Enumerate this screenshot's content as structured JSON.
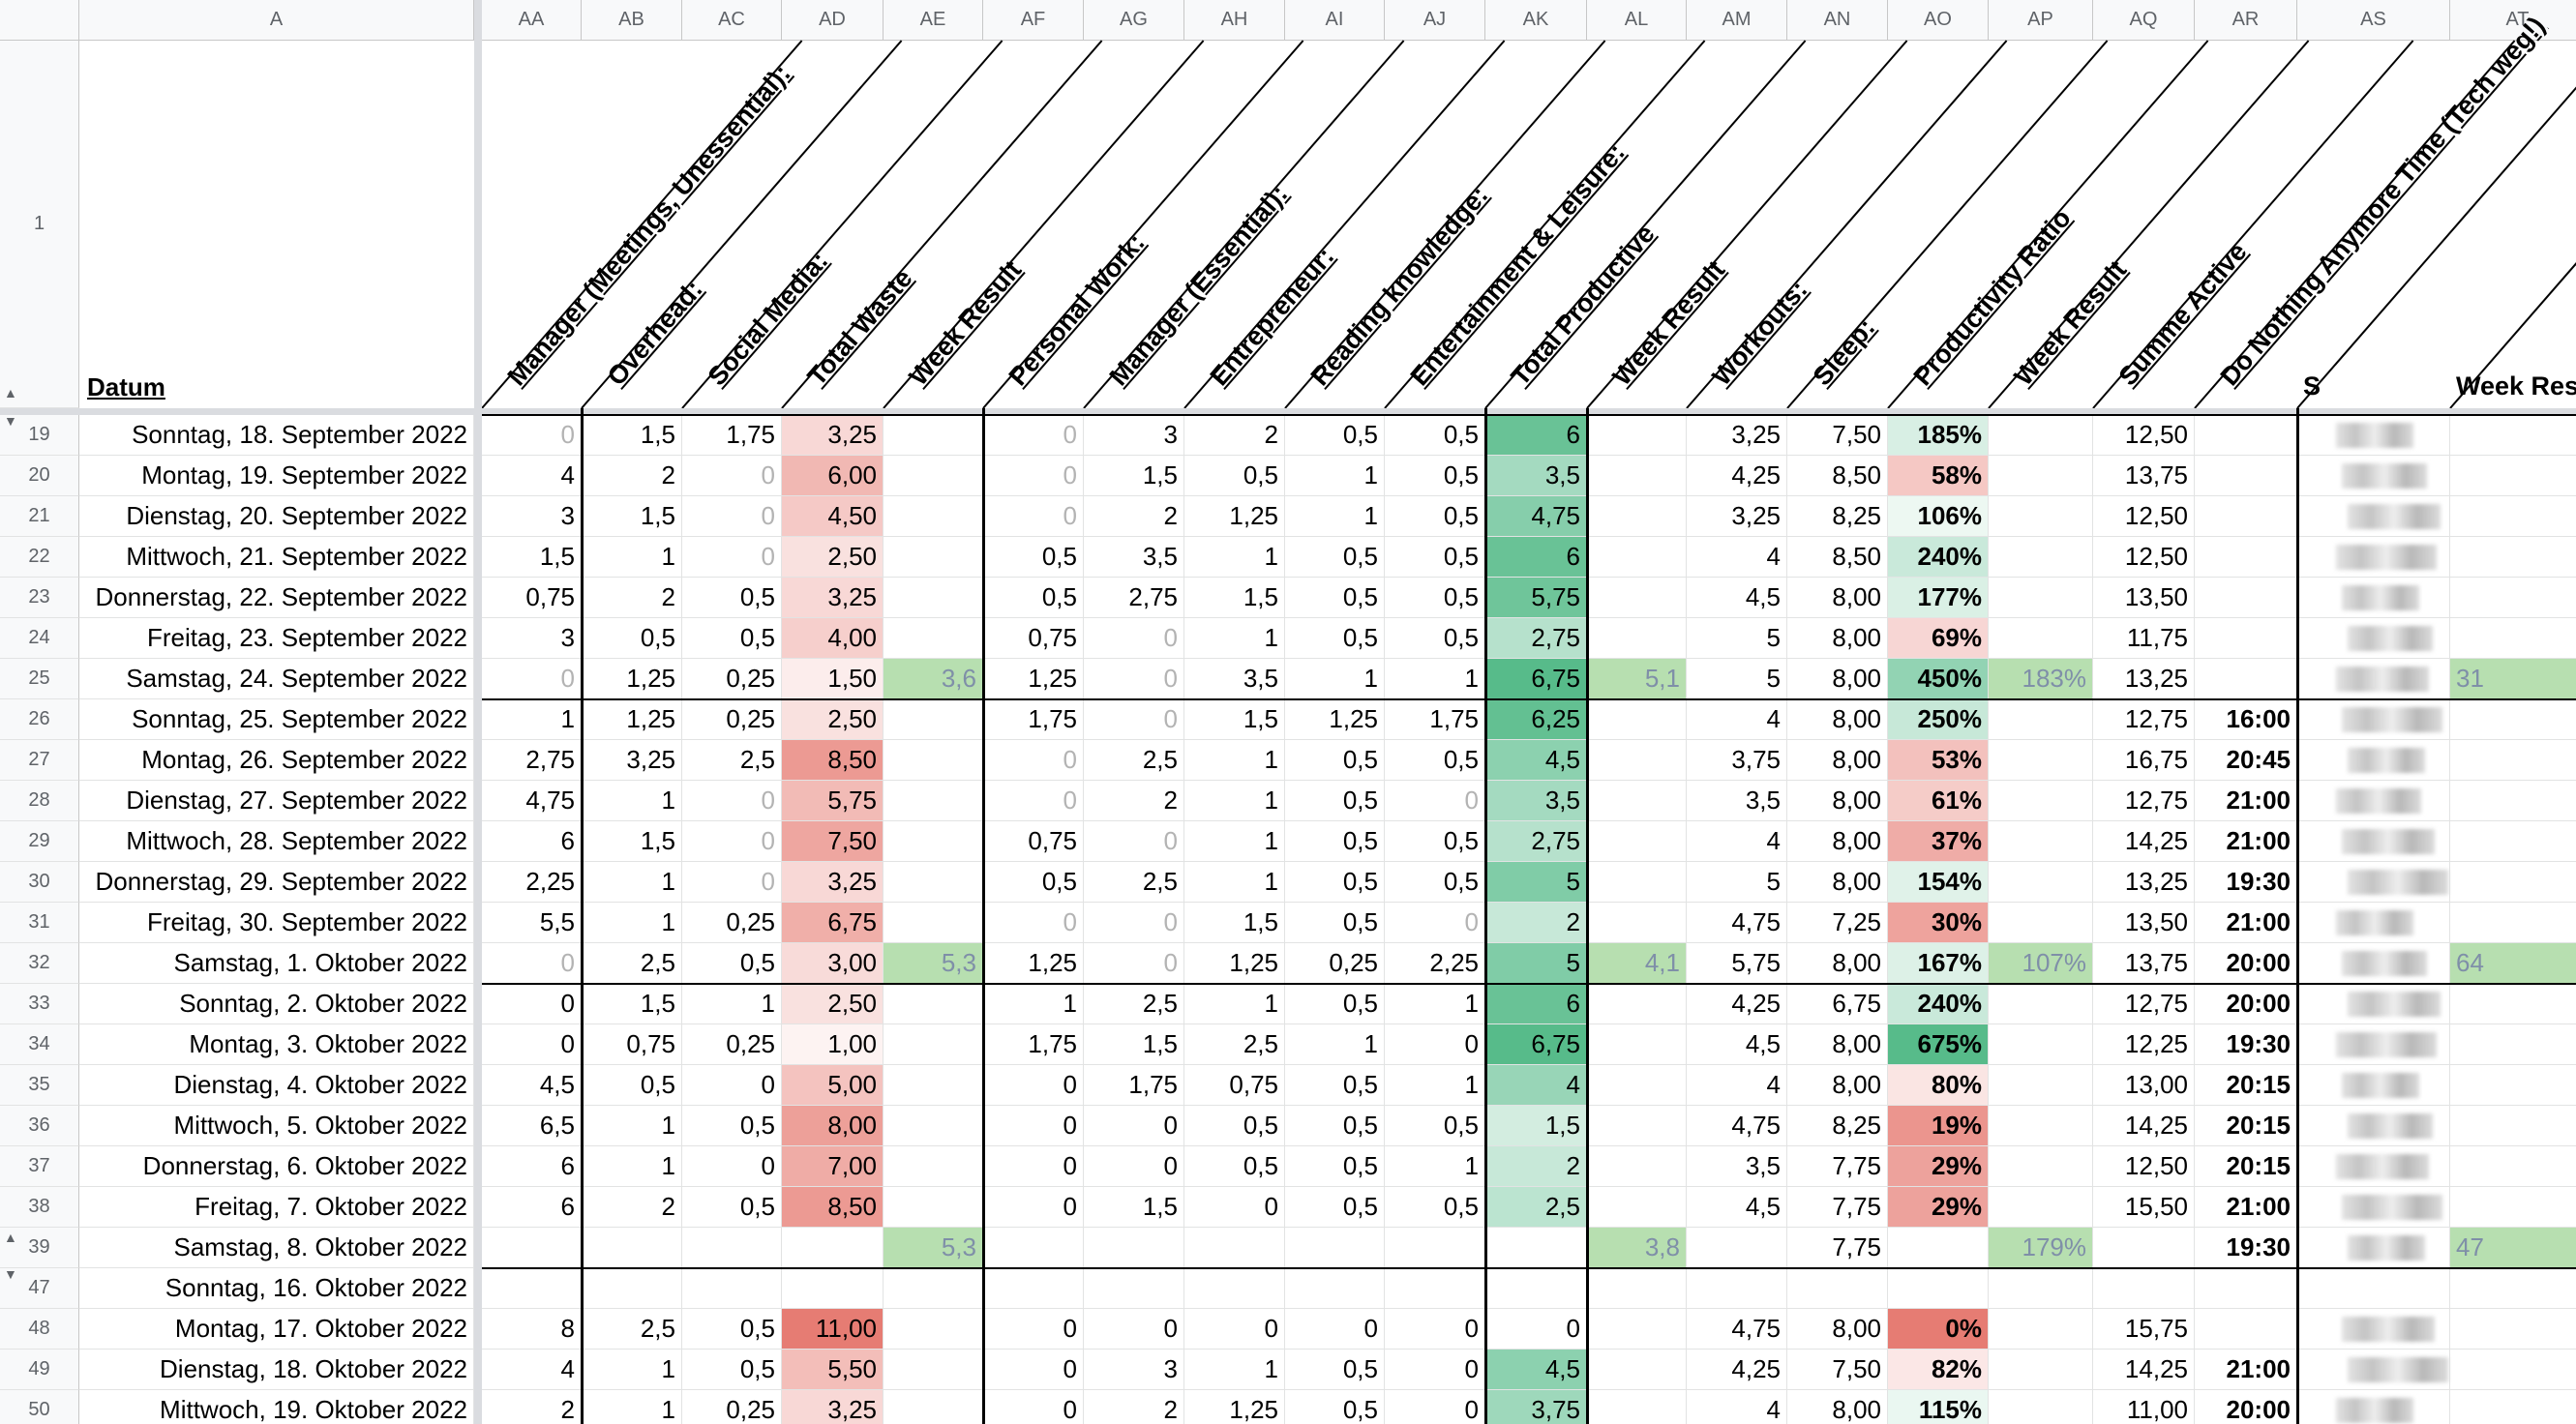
{
  "columns": [
    {
      "id": "A",
      "label": "A"
    },
    {
      "id": "AA",
      "label": "AA"
    },
    {
      "id": "AB",
      "label": "AB"
    },
    {
      "id": "AC",
      "label": "AC"
    },
    {
      "id": "AD",
      "label": "AD"
    },
    {
      "id": "AE",
      "label": "AE"
    },
    {
      "id": "AF",
      "label": "AF"
    },
    {
      "id": "AG",
      "label": "AG"
    },
    {
      "id": "AH",
      "label": "AH"
    },
    {
      "id": "AI",
      "label": "AI"
    },
    {
      "id": "AJ",
      "label": "AJ"
    },
    {
      "id": "AK",
      "label": "AK"
    },
    {
      "id": "AL",
      "label": "AL"
    },
    {
      "id": "AM",
      "label": "AM"
    },
    {
      "id": "AN",
      "label": "AN"
    },
    {
      "id": "AO",
      "label": "AO"
    },
    {
      "id": "AP",
      "label": "AP"
    },
    {
      "id": "AQ",
      "label": "AQ"
    },
    {
      "id": "AR",
      "label": "AR"
    },
    {
      "id": "AS",
      "label": "AS"
    },
    {
      "id": "AT",
      "label": "AT"
    }
  ],
  "header_row": {
    "row_label": "1",
    "datum": "Datum",
    "headers": [
      "Manager (Meetings, Unessential):",
      "Overhead:",
      "Social Media:",
      "Total Waste",
      "Week Result",
      "Personal Work:",
      "Manager (Essential):",
      "Entrepreneur:",
      "Reading knowledge:",
      "Entertainment & Leisure:",
      "Total Productive",
      "Week Result",
      "Workouts:",
      "Sleep:",
      "Productivity Ratio",
      "Week Result",
      "Summe Active",
      "Do Nothing Anymore Time (Tech weg!)",
      "S",
      "Week Res"
    ]
  },
  "rows": [
    {
      "n": "19",
      "date": "Sonntag, 18. September 2022",
      "v": [
        "0",
        "1,5",
        "1,75",
        "3,25",
        "",
        "0",
        "3",
        "2",
        "0,5",
        "0,5",
        "6",
        "",
        "3,25",
        "7,50",
        "185%",
        "",
        "12,50",
        "",
        "",
        ""
      ]
    },
    {
      "n": "20",
      "date": "Montag, 19. September 2022",
      "v": [
        "4",
        "2",
        "0",
        "6,00",
        "",
        "0",
        "1,5",
        "0,5",
        "1",
        "0,5",
        "3,5",
        "",
        "4,25",
        "8,50",
        "58%",
        "",
        "13,75",
        "",
        "",
        ""
      ]
    },
    {
      "n": "21",
      "date": "Dienstag, 20. September 2022",
      "v": [
        "3",
        "1,5",
        "0",
        "4,50",
        "",
        "0",
        "2",
        "1,25",
        "1",
        "0,5",
        "4,75",
        "",
        "3,25",
        "8,25",
        "106%",
        "",
        "12,50",
        "",
        "",
        ""
      ]
    },
    {
      "n": "22",
      "date": "Mittwoch, 21. September 2022",
      "v": [
        "1,5",
        "1",
        "0",
        "2,50",
        "",
        "0,5",
        "3,5",
        "1",
        "0,5",
        "0,5",
        "6",
        "",
        "4",
        "8,50",
        "240%",
        "",
        "12,50",
        "",
        "",
        ""
      ]
    },
    {
      "n": "23",
      "date": "Donnerstag, 22. September 2022",
      "v": [
        "0,75",
        "2",
        "0,5",
        "3,25",
        "",
        "0,5",
        "2,75",
        "1,5",
        "0,5",
        "0,5",
        "5,75",
        "",
        "4,5",
        "8,00",
        "177%",
        "",
        "13,50",
        "",
        "",
        ""
      ]
    },
    {
      "n": "24",
      "date": "Freitag, 23. September 2022",
      "v": [
        "3",
        "0,5",
        "0,5",
        "4,00",
        "",
        "0,75",
        "0",
        "1",
        "0,5",
        "0,5",
        "2,75",
        "",
        "5",
        "8,00",
        "69%",
        "",
        "11,75",
        "",
        "",
        ""
      ]
    },
    {
      "n": "25",
      "date": "Samstag, 24. September 2022",
      "v": [
        "0",
        "1,25",
        "0,25",
        "1,50",
        "3,6",
        "1,25",
        "0",
        "3,5",
        "1",
        "1",
        "6,75",
        "5,1",
        "5",
        "8,00",
        "450%",
        "183%",
        "13,25",
        "",
        "",
        "31"
      ]
    },
    {
      "n": "26",
      "date": "Sonntag, 25. September 2022",
      "v": [
        "1",
        "1,25",
        "0,25",
        "2,50",
        "",
        "1,75",
        "0",
        "1,5",
        "1,25",
        "1,75",
        "6,25",
        "",
        "4",
        "8,00",
        "250%",
        "",
        "12,75",
        "16:00",
        "",
        ""
      ]
    },
    {
      "n": "27",
      "date": "Montag, 26. September 2022",
      "v": [
        "2,75",
        "3,25",
        "2,5",
        "8,50",
        "",
        "0",
        "2,5",
        "1",
        "0,5",
        "0,5",
        "4,5",
        "",
        "3,75",
        "8,00",
        "53%",
        "",
        "16,75",
        "20:45",
        "",
        ""
      ]
    },
    {
      "n": "28",
      "date": "Dienstag, 27. September 2022",
      "v": [
        "4,75",
        "1",
        "0",
        "5,75",
        "",
        "0",
        "2",
        "1",
        "0,5",
        "0",
        "3,5",
        "",
        "3,5",
        "8,00",
        "61%",
        "",
        "12,75",
        "21:00",
        "",
        ""
      ]
    },
    {
      "n": "29",
      "date": "Mittwoch, 28. September 2022",
      "v": [
        "6",
        "1,5",
        "0",
        "7,50",
        "",
        "0,75",
        "0",
        "1",
        "0,5",
        "0,5",
        "2,75",
        "",
        "4",
        "8,00",
        "37%",
        "",
        "14,25",
        "21:00",
        "",
        ""
      ]
    },
    {
      "n": "30",
      "date": "Donnerstag, 29. September 2022",
      "v": [
        "2,25",
        "1",
        "0",
        "3,25",
        "",
        "0,5",
        "2,5",
        "1",
        "0,5",
        "0,5",
        "5",
        "",
        "5",
        "8,00",
        "154%",
        "",
        "13,25",
        "19:30",
        "",
        ""
      ]
    },
    {
      "n": "31",
      "date": "Freitag, 30. September 2022",
      "v": [
        "5,5",
        "1",
        "0,25",
        "6,75",
        "",
        "0",
        "0",
        "1,5",
        "0,5",
        "0",
        "2",
        "",
        "4,75",
        "7,25",
        "30%",
        "",
        "13,50",
        "21:00",
        "",
        ""
      ]
    },
    {
      "n": "32",
      "date": "Samstag, 1. Oktober 2022",
      "v": [
        "0",
        "2,5",
        "0,5",
        "3,00",
        "5,3",
        "1,25",
        "0",
        "1,25",
        "0,25",
        "2,25",
        "5",
        "4,1",
        "5,75",
        "8,00",
        "167%",
        "107%",
        "13,75",
        "20:00",
        "",
        "64"
      ]
    },
    {
      "n": "33",
      "date": "Sonntag, 2. Oktober 2022",
      "v": [
        "0",
        "1,5",
        "1",
        "2,50",
        "",
        "1",
        "2,5",
        "1",
        "0,5",
        "1",
        "6",
        "",
        "4,25",
        "6,75",
        "240%",
        "",
        "12,75",
        "20:00",
        "",
        ""
      ]
    },
    {
      "n": "34",
      "date": "Montag, 3. Oktober 2022",
      "v": [
        "0",
        "0,75",
        "0,25",
        "1,00",
        "",
        "1,75",
        "1,5",
        "2,5",
        "1",
        "0",
        "6,75",
        "",
        "4,5",
        "8,00",
        "675%",
        "",
        "12,25",
        "19:30",
        "",
        ""
      ]
    },
    {
      "n": "35",
      "date": "Dienstag, 4. Oktober 2022",
      "v": [
        "4,5",
        "0,5",
        "0",
        "5,00",
        "",
        "0",
        "1,75",
        "0,75",
        "0,5",
        "1",
        "4",
        "",
        "4",
        "8,00",
        "80%",
        "",
        "13,00",
        "20:15",
        "",
        ""
      ]
    },
    {
      "n": "36",
      "date": "Mittwoch, 5. Oktober 2022",
      "v": [
        "6,5",
        "1",
        "0,5",
        "8,00",
        "",
        "0",
        "0",
        "0,5",
        "0,5",
        "0,5",
        "1,5",
        "",
        "4,75",
        "8,25",
        "19%",
        "",
        "14,25",
        "20:15",
        "",
        ""
      ]
    },
    {
      "n": "37",
      "date": "Donnerstag, 6. Oktober 2022",
      "v": [
        "6",
        "1",
        "0",
        "7,00",
        "",
        "0",
        "0",
        "0,5",
        "0,5",
        "1",
        "2",
        "",
        "3,5",
        "7,75",
        "29%",
        "",
        "12,50",
        "20:15",
        "",
        ""
      ]
    },
    {
      "n": "38",
      "date": "Freitag, 7. Oktober 2022",
      "v": [
        "6",
        "2",
        "0,5",
        "8,50",
        "",
        "0",
        "1,5",
        "0",
        "0,5",
        "0,5",
        "2,5",
        "",
        "4,5",
        "7,75",
        "29%",
        "",
        "15,50",
        "21:00",
        "",
        ""
      ]
    },
    {
      "n": "39",
      "date": "Samstag, 8. Oktober 2022",
      "v": [
        "",
        "",
        "",
        "",
        "5,3",
        "",
        "",
        "",
        "",
        "",
        "",
        "3,8",
        "",
        "7,75",
        "",
        "179%",
        "",
        "19:30",
        "",
        "47"
      ]
    },
    {
      "n": "47",
      "date": "Sonntag, 16. Oktober 2022",
      "v": [
        "",
        "",
        "",
        "",
        "",
        "",
        "",
        "",
        "",
        "",
        "",
        "",
        "",
        "",
        "",
        "",
        "",
        "",
        "",
        ""
      ]
    },
    {
      "n": "48",
      "date": "Montag, 17. Oktober 2022",
      "v": [
        "8",
        "2,5",
        "0,5",
        "11,00",
        "",
        "0",
        "0",
        "0",
        "0",
        "0",
        "0",
        "",
        "4,75",
        "8,00",
        "0%",
        "",
        "15,75",
        "",
        "",
        ""
      ]
    },
    {
      "n": "49",
      "date": "Dienstag, 18. Oktober 2022",
      "v": [
        "4",
        "1",
        "0,5",
        "5,50",
        "",
        "0",
        "3",
        "1",
        "0,5",
        "0",
        "4,5",
        "",
        "4,25",
        "7,50",
        "82%",
        "",
        "14,25",
        "21:00",
        "",
        ""
      ]
    },
    {
      "n": "50",
      "date": "Mittwoch, 19. Oktober 2022",
      "v": [
        "2",
        "1",
        "0,25",
        "3,25",
        "",
        "0",
        "2",
        "1,25",
        "0,5",
        "0",
        "3,75",
        "",
        "4",
        "8,00",
        "115%",
        "",
        "11,00",
        "20:00",
        "",
        ""
      ]
    }
  ],
  "colors": {
    "header_bg": "#f8f9fa",
    "grid": "#e2e3e3",
    "week_green": "#b7dfb0",
    "waste_red": "#e67c73",
    "productive_green": "#57bb8a"
  }
}
